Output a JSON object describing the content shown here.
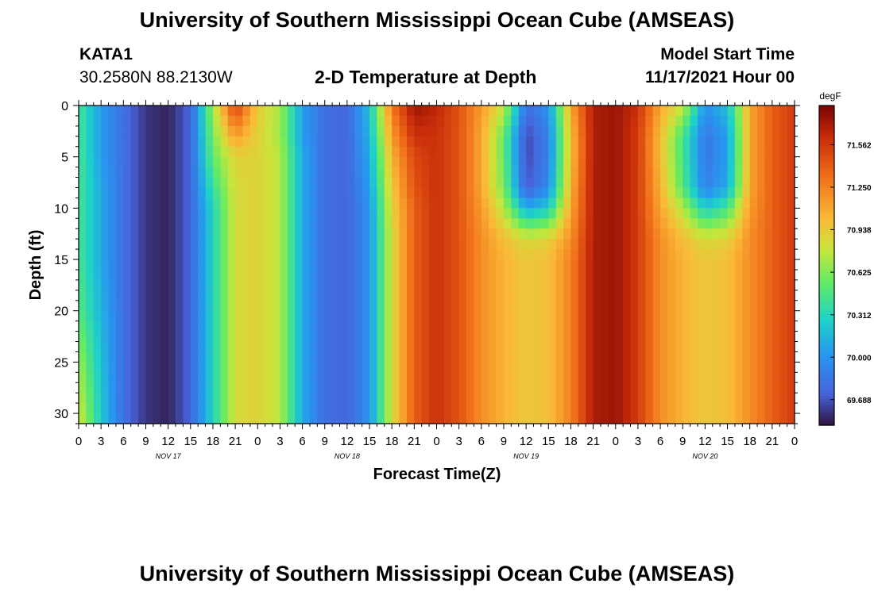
{
  "header": {
    "title": "University of Southern Mississippi Ocean Cube (AMSEAS)",
    "station": "KATA1",
    "coordinates": "30.2580N  88.2130W",
    "plot_title": "2-D Temperature at Depth",
    "start_label": "Model Start Time",
    "start_value": "11/17/2021 Hour 00"
  },
  "footer": {
    "title": "University of Southern Mississippi Ocean Cube (AMSEAS)"
  },
  "chart_data": {
    "type": "heatmap",
    "title": "2-D Temperature at Depth",
    "xlabel": "Forecast Time(Z)",
    "ylabel": "Depth (ft)",
    "x_tick_labels": [
      "0",
      "3",
      "6",
      "9",
      "12",
      "15",
      "18",
      "21",
      "0",
      "3",
      "6",
      "9",
      "12",
      "15",
      "18",
      "21",
      "0",
      "3",
      "6",
      "9",
      "12",
      "15",
      "18",
      "21",
      "0",
      "3",
      "6",
      "9",
      "12",
      "15",
      "18",
      "21",
      "0"
    ],
    "day_labels": [
      {
        "label": "NOV 17",
        "hour": 12
      },
      {
        "label": "NOV 18",
        "hour": 36
      },
      {
        "label": "NOV 19",
        "hour": 60
      },
      {
        "label": "NOV 20",
        "hour": 84
      }
    ],
    "xlim": [
      0,
      96
    ],
    "y_ticks": [
      0,
      5,
      10,
      15,
      20,
      25,
      30
    ],
    "ylim": [
      0,
      31
    ],
    "y_inverted": true,
    "colorbar": {
      "unit": "degF",
      "ticks": [
        "71.562",
        "71.250",
        "70.938",
        "70.625",
        "70.312",
        "70.000",
        "69.688"
      ],
      "range": [
        69.5,
        71.85
      ]
    },
    "hours": [
      0,
      3,
      6,
      9,
      12,
      15,
      18,
      21,
      24,
      27,
      30,
      33,
      36,
      39,
      42,
      45,
      48,
      51,
      54,
      57,
      60,
      63,
      66,
      69,
      72,
      75,
      78,
      81,
      84,
      87,
      90,
      93,
      96
    ],
    "depths": [
      0,
      3,
      5,
      8,
      10,
      13,
      15,
      20,
      25,
      31
    ],
    "temperature_degF": [
      [
        70.45,
        70.05,
        69.8,
        69.6,
        69.55,
        69.75,
        70.7,
        71.55,
        70.95,
        70.7,
        70.05,
        69.8,
        69.75,
        70.2,
        71.3,
        71.75,
        71.65,
        71.45,
        71.15,
        70.8,
        69.8,
        70.0,
        71.1,
        71.7,
        71.75,
        71.6,
        71.1,
        70.8,
        70.0,
        70.2,
        71.1,
        71.4,
        71.55
      ],
      [
        70.45,
        70.05,
        69.8,
        69.6,
        69.55,
        69.75,
        70.6,
        71.15,
        70.9,
        70.7,
        70.05,
        69.8,
        69.75,
        70.15,
        71.15,
        71.6,
        71.6,
        71.45,
        71.1,
        70.55,
        69.65,
        69.9,
        71.0,
        71.7,
        71.75,
        71.55,
        71.0,
        70.45,
        69.85,
        70.05,
        71.1,
        71.4,
        71.55
      ],
      [
        70.45,
        70.05,
        69.8,
        69.6,
        69.55,
        69.75,
        70.55,
        70.9,
        70.9,
        70.75,
        70.1,
        69.8,
        69.75,
        70.1,
        71.05,
        71.5,
        71.6,
        71.45,
        71.1,
        70.55,
        69.65,
        69.9,
        71.0,
        71.7,
        71.75,
        71.55,
        71.0,
        70.45,
        69.85,
        70.05,
        71.1,
        71.4,
        71.55
      ],
      [
        70.45,
        70.1,
        69.8,
        69.6,
        69.55,
        69.75,
        70.4,
        70.85,
        70.9,
        70.75,
        70.1,
        69.8,
        69.75,
        70.05,
        70.95,
        71.45,
        71.6,
        71.45,
        71.1,
        70.6,
        69.7,
        69.95,
        71.05,
        71.7,
        71.75,
        71.55,
        71.05,
        70.5,
        69.9,
        70.1,
        71.1,
        71.4,
        71.55
      ],
      [
        70.45,
        70.1,
        69.8,
        69.6,
        69.55,
        69.75,
        70.3,
        70.85,
        70.9,
        70.75,
        70.1,
        69.8,
        69.75,
        70.0,
        70.9,
        71.4,
        71.6,
        71.45,
        71.15,
        70.75,
        70.1,
        70.25,
        71.1,
        71.7,
        71.75,
        71.55,
        71.1,
        70.75,
        70.25,
        70.45,
        71.15,
        71.4,
        71.55
      ],
      [
        70.45,
        70.1,
        69.8,
        69.6,
        69.55,
        69.75,
        70.3,
        70.85,
        70.9,
        70.75,
        70.1,
        69.8,
        69.75,
        70.0,
        70.85,
        71.4,
        71.6,
        71.45,
        71.2,
        71.0,
        70.85,
        70.9,
        71.2,
        71.7,
        71.75,
        71.55,
        71.2,
        71.0,
        70.85,
        70.9,
        71.2,
        71.4,
        71.55
      ],
      [
        70.45,
        70.1,
        69.8,
        69.6,
        69.55,
        69.75,
        70.3,
        70.85,
        70.9,
        70.75,
        70.1,
        69.8,
        69.75,
        70.0,
        70.85,
        71.4,
        71.6,
        71.45,
        71.2,
        71.05,
        70.95,
        71.0,
        71.25,
        71.7,
        71.75,
        71.55,
        71.2,
        71.05,
        70.95,
        71.0,
        71.2,
        71.4,
        71.55
      ],
      [
        70.5,
        70.15,
        69.8,
        69.6,
        69.55,
        69.75,
        70.3,
        70.85,
        70.9,
        70.75,
        70.1,
        69.8,
        69.75,
        70.0,
        70.85,
        71.4,
        71.6,
        71.45,
        71.2,
        71.05,
        70.95,
        71.0,
        71.25,
        71.7,
        71.75,
        71.55,
        71.2,
        71.05,
        70.95,
        71.0,
        71.2,
        71.4,
        71.55
      ],
      [
        70.7,
        70.2,
        69.8,
        69.6,
        69.55,
        69.75,
        70.3,
        70.85,
        70.9,
        70.75,
        70.1,
        69.8,
        69.75,
        70.0,
        70.85,
        71.4,
        71.6,
        71.45,
        71.2,
        71.05,
        70.95,
        71.0,
        71.25,
        71.7,
        71.75,
        71.55,
        71.2,
        71.05,
        70.95,
        71.0,
        71.2,
        71.4,
        71.55
      ],
      [
        70.85,
        70.25,
        69.8,
        69.6,
        69.55,
        69.75,
        70.3,
        70.85,
        70.9,
        70.75,
        70.1,
        69.8,
        69.75,
        70.0,
        70.85,
        71.4,
        71.6,
        71.45,
        71.2,
        71.05,
        70.95,
        71.0,
        71.25,
        71.7,
        71.75,
        71.55,
        71.2,
        71.05,
        70.95,
        71.0,
        71.2,
        71.4,
        71.55
      ]
    ]
  }
}
